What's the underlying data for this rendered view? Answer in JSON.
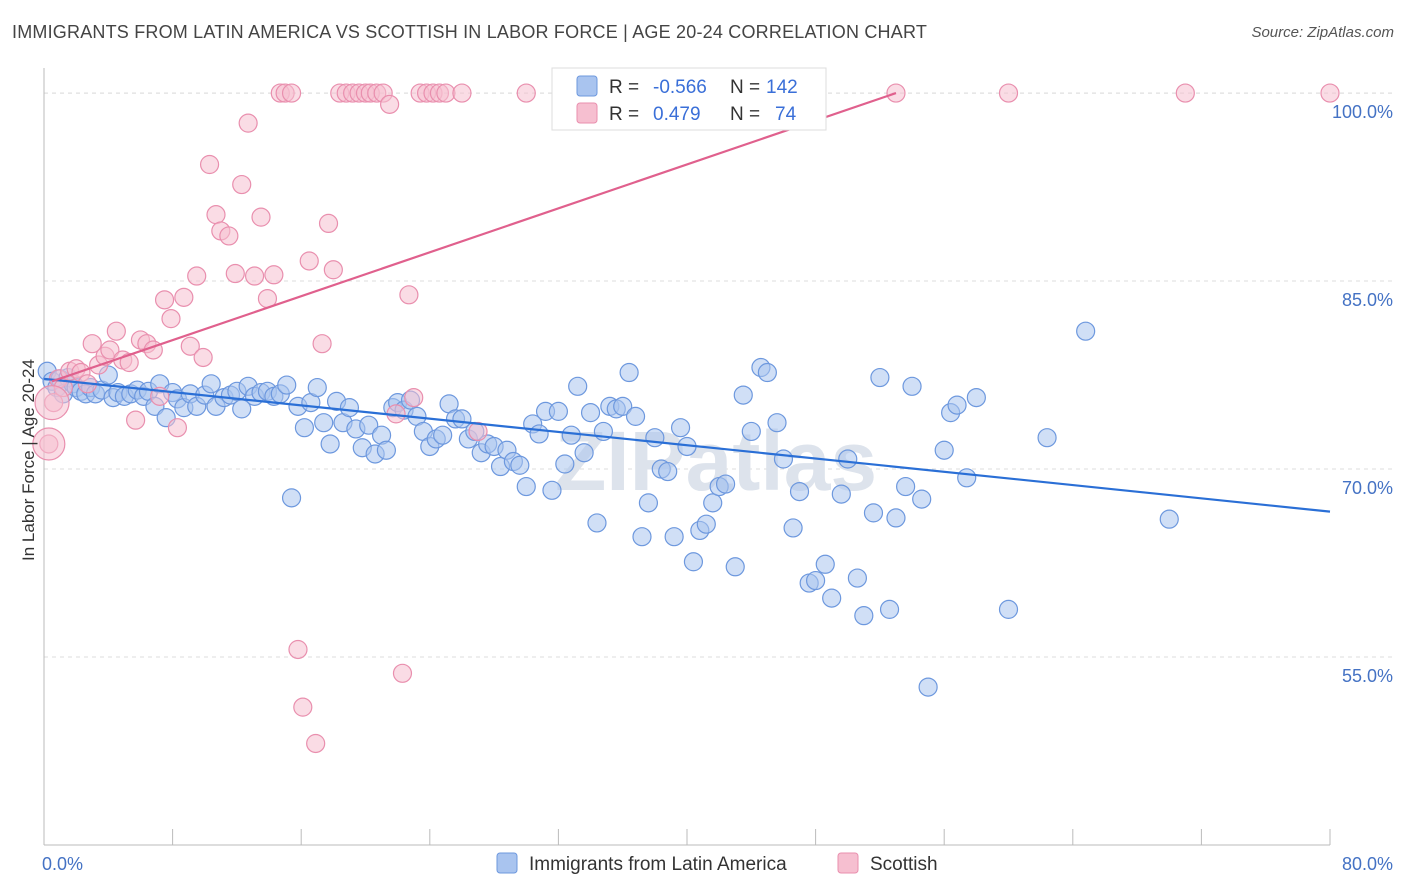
{
  "title": "IMMIGRANTS FROM LATIN AMERICA VS SCOTTISH IN LABOR FORCE | AGE 20-24 CORRELATION CHART",
  "source": "Source: ZipAtlas.com",
  "watermark": "ZIPatlas",
  "colors": {
    "blue_fill": "#a9c4ef",
    "blue_stroke": "#6d98de",
    "blue_line": "#2a6fd6",
    "pink_fill": "#f6bfd0",
    "pink_stroke": "#e98fae",
    "pink_line": "#e0608d",
    "grid": "#dddddd",
    "tick_label": "#4472c4"
  },
  "legend": {
    "r_label": "R =",
    "n_label": "N =",
    "rows": [
      {
        "r": "-0.566",
        "n": "142"
      },
      {
        "r": "0.479",
        "n": "74"
      }
    ]
  },
  "chart_data": {
    "type": "scatter",
    "xlabel": "",
    "ylabel": "In Labor Force | Age 20-24",
    "xlim": [
      0,
      80
    ],
    "ylim": [
      40,
      102
    ],
    "x_tick_labels": [
      "0.0%",
      "80.0%"
    ],
    "y_ticks": [
      55,
      70,
      85,
      100
    ],
    "y_tick_labels": [
      "55.0%",
      "70.0%",
      "85.0%",
      "100.0%"
    ],
    "grid": true,
    "legend_position": "top-center",
    "series": [
      {
        "name": "Immigrants from Latin America",
        "color": "#a9c4ef",
        "trend": {
          "x": [
            0,
            80
          ],
          "y": [
            77.2,
            66.6
          ]
        },
        "points": [
          [
            0.2,
            77.8
          ],
          [
            0.5,
            77.0
          ],
          [
            0.8,
            76.5
          ],
          [
            1.0,
            77.2
          ],
          [
            1.2,
            76.0
          ],
          [
            1.5,
            77.3
          ],
          [
            1.8,
            76.8
          ],
          [
            2.0,
            76.5
          ],
          [
            2.3,
            76.2
          ],
          [
            2.6,
            76.0
          ],
          [
            2.9,
            76.5
          ],
          [
            3.2,
            76.0
          ],
          [
            3.6,
            76.3
          ],
          [
            4.0,
            77.5
          ],
          [
            4.3,
            75.7
          ],
          [
            4.6,
            76.1
          ],
          [
            5.0,
            75.8
          ],
          [
            5.4,
            76.0
          ],
          [
            5.8,
            76.3
          ],
          [
            6.2,
            75.8
          ],
          [
            6.5,
            76.2
          ],
          [
            6.9,
            75.0
          ],
          [
            7.2,
            76.8
          ],
          [
            7.6,
            74.1
          ],
          [
            8.0,
            76.1
          ],
          [
            8.3,
            75.6
          ],
          [
            8.7,
            74.9
          ],
          [
            9.1,
            76.0
          ],
          [
            9.5,
            75.0
          ],
          [
            10.0,
            75.9
          ],
          [
            10.4,
            76.8
          ],
          [
            10.7,
            75.0
          ],
          [
            11.2,
            75.7
          ],
          [
            11.6,
            75.9
          ],
          [
            12.0,
            76.2
          ],
          [
            12.3,
            74.8
          ],
          [
            12.7,
            76.6
          ],
          [
            13.1,
            75.8
          ],
          [
            13.5,
            76.1
          ],
          [
            13.9,
            76.2
          ],
          [
            14.3,
            75.8
          ],
          [
            14.7,
            76.0
          ],
          [
            15.1,
            76.7
          ],
          [
            15.4,
            67.7
          ],
          [
            15.8,
            75.0
          ],
          [
            16.2,
            73.3
          ],
          [
            16.6,
            75.3
          ],
          [
            17.0,
            76.5
          ],
          [
            17.4,
            73.7
          ],
          [
            17.8,
            72.0
          ],
          [
            18.2,
            75.4
          ],
          [
            18.6,
            73.7
          ],
          [
            19.0,
            74.9
          ],
          [
            19.4,
            73.2
          ],
          [
            19.8,
            71.7
          ],
          [
            20.2,
            73.5
          ],
          [
            20.6,
            71.2
          ],
          [
            21.0,
            72.7
          ],
          [
            21.3,
            71.5
          ],
          [
            21.7,
            74.9
          ],
          [
            22.0,
            75.3
          ],
          [
            22.4,
            74.7
          ],
          [
            22.8,
            75.5
          ],
          [
            23.2,
            74.2
          ],
          [
            23.6,
            73.0
          ],
          [
            24.0,
            71.8
          ],
          [
            24.4,
            72.4
          ],
          [
            24.8,
            72.7
          ],
          [
            25.2,
            75.2
          ],
          [
            25.6,
            74.0
          ],
          [
            26.0,
            74.0
          ],
          [
            26.4,
            72.4
          ],
          [
            26.8,
            73.0
          ],
          [
            27.2,
            71.3
          ],
          [
            27.6,
            72.0
          ],
          [
            28.0,
            71.8
          ],
          [
            28.4,
            70.2
          ],
          [
            28.8,
            71.5
          ],
          [
            29.2,
            70.6
          ],
          [
            29.6,
            70.3
          ],
          [
            30.0,
            68.6
          ],
          [
            30.4,
            73.6
          ],
          [
            30.8,
            72.8
          ],
          [
            31.2,
            74.6
          ],
          [
            31.6,
            68.3
          ],
          [
            32.0,
            74.6
          ],
          [
            32.4,
            70.4
          ],
          [
            32.8,
            72.7
          ],
          [
            33.2,
            76.6
          ],
          [
            33.6,
            71.3
          ],
          [
            34.0,
            74.5
          ],
          [
            34.4,
            65.7
          ],
          [
            34.8,
            73.0
          ],
          [
            35.2,
            75.0
          ],
          [
            35.6,
            74.8
          ],
          [
            36.0,
            75.0
          ],
          [
            36.4,
            77.7
          ],
          [
            36.8,
            74.2
          ],
          [
            37.2,
            64.6
          ],
          [
            37.6,
            67.3
          ],
          [
            38.0,
            72.5
          ],
          [
            38.4,
            70.0
          ],
          [
            38.8,
            69.8
          ],
          [
            39.2,
            64.6
          ],
          [
            39.6,
            73.3
          ],
          [
            40.0,
            71.8
          ],
          [
            40.4,
            62.6
          ],
          [
            40.8,
            65.1
          ],
          [
            41.2,
            65.6
          ],
          [
            41.6,
            67.3
          ],
          [
            42.0,
            68.6
          ],
          [
            42.4,
            68.8
          ],
          [
            43.0,
            62.2
          ],
          [
            43.5,
            75.9
          ],
          [
            44.0,
            73.0
          ],
          [
            44.6,
            78.1
          ],
          [
            45.0,
            77.7
          ],
          [
            45.6,
            73.7
          ],
          [
            46.0,
            70.8
          ],
          [
            46.6,
            65.3
          ],
          [
            47.0,
            68.2
          ],
          [
            47.6,
            60.9
          ],
          [
            48.0,
            61.1
          ],
          [
            48.6,
            62.4
          ],
          [
            49.0,
            59.7
          ],
          [
            49.6,
            68.0
          ],
          [
            50.0,
            70.8
          ],
          [
            50.6,
            61.3
          ],
          [
            51.0,
            58.3
          ],
          [
            51.6,
            66.5
          ],
          [
            52.0,
            77.3
          ],
          [
            52.6,
            58.8
          ],
          [
            53.0,
            66.1
          ],
          [
            53.6,
            68.6
          ],
          [
            54.0,
            76.6
          ],
          [
            54.6,
            67.6
          ],
          [
            55.0,
            52.6
          ],
          [
            56.0,
            71.5
          ],
          [
            56.4,
            74.5
          ],
          [
            56.8,
            75.1
          ],
          [
            57.4,
            69.3
          ],
          [
            58.0,
            75.7
          ],
          [
            60.0,
            58.8
          ],
          [
            62.4,
            72.5
          ],
          [
            64.8,
            81.0
          ],
          [
            70.0,
            66.0
          ]
        ]
      },
      {
        "name": "Scottish",
        "color": "#f6bfd0",
        "trend": {
          "x": [
            0.5,
            53
          ],
          "y": [
            77.0,
            100.0
          ]
        },
        "points": [
          [
            0.3,
            72.0
          ],
          [
            0.6,
            75.3
          ],
          [
            0.9,
            77.2
          ],
          [
            1.2,
            76.5
          ],
          [
            1.6,
            77.8
          ],
          [
            2.0,
            78.0
          ],
          [
            2.3,
            77.7
          ],
          [
            2.7,
            76.8
          ],
          [
            3.0,
            80.0
          ],
          [
            3.4,
            78.3
          ],
          [
            3.8,
            79.0
          ],
          [
            4.1,
            79.5
          ],
          [
            4.5,
            81.0
          ],
          [
            4.9,
            78.7
          ],
          [
            5.3,
            78.5
          ],
          [
            5.7,
            73.9
          ],
          [
            6.0,
            80.3
          ],
          [
            6.4,
            80.0
          ],
          [
            6.8,
            79.5
          ],
          [
            7.2,
            75.8
          ],
          [
            7.5,
            83.5
          ],
          [
            7.9,
            82.0
          ],
          [
            8.3,
            73.3
          ],
          [
            8.7,
            83.7
          ],
          [
            9.1,
            79.8
          ],
          [
            9.5,
            85.4
          ],
          [
            9.9,
            78.9
          ],
          [
            10.3,
            94.3
          ],
          [
            10.7,
            90.3
          ],
          [
            11.0,
            89.0
          ],
          [
            11.5,
            88.6
          ],
          [
            11.9,
            85.6
          ],
          [
            12.3,
            92.7
          ],
          [
            12.7,
            97.6
          ],
          [
            13.1,
            85.4
          ],
          [
            13.5,
            90.1
          ],
          [
            13.9,
            83.6
          ],
          [
            14.3,
            85.5
          ],
          [
            14.7,
            100.0
          ],
          [
            15.0,
            100.0
          ],
          [
            15.4,
            100.0
          ],
          [
            15.8,
            55.6
          ],
          [
            16.1,
            51.0
          ],
          [
            16.5,
            86.6
          ],
          [
            16.9,
            48.1
          ],
          [
            17.3,
            80.0
          ],
          [
            17.7,
            89.6
          ],
          [
            18.0,
            85.9
          ],
          [
            18.4,
            100.0
          ],
          [
            18.8,
            100.0
          ],
          [
            19.2,
            100.0
          ],
          [
            19.6,
            100.0
          ],
          [
            20.0,
            100.0
          ],
          [
            20.3,
            100.0
          ],
          [
            20.7,
            100.0
          ],
          [
            21.1,
            100.0
          ],
          [
            21.5,
            99.1
          ],
          [
            21.9,
            74.4
          ],
          [
            22.3,
            53.7
          ],
          [
            22.7,
            83.9
          ],
          [
            23.0,
            75.7
          ],
          [
            23.4,
            100.0
          ],
          [
            23.8,
            100.0
          ],
          [
            24.2,
            100.0
          ],
          [
            24.6,
            100.0
          ],
          [
            25.0,
            100.0
          ],
          [
            26.0,
            100.0
          ],
          [
            27.0,
            73.0
          ],
          [
            30.0,
            100.0
          ],
          [
            40.0,
            100.0
          ],
          [
            53.0,
            100.0
          ],
          [
            60.0,
            100.0
          ],
          [
            71.0,
            100.0
          ],
          [
            80.0,
            100.0
          ]
        ]
      }
    ]
  }
}
